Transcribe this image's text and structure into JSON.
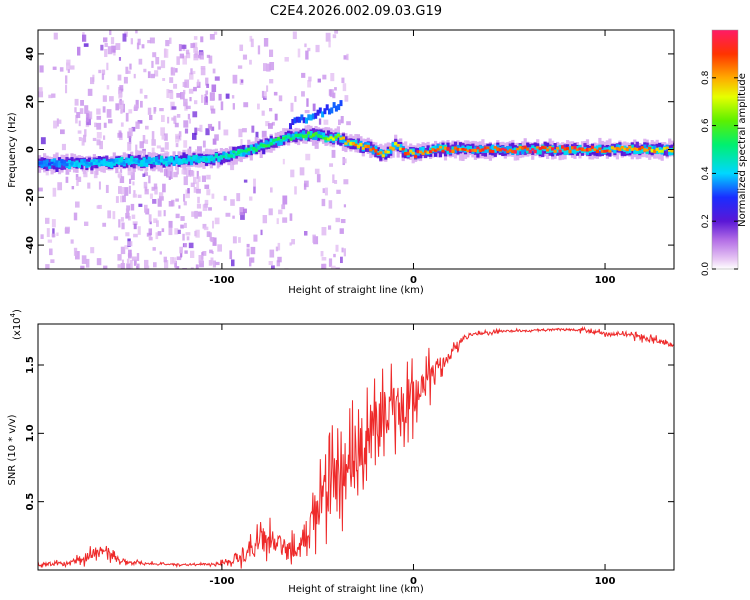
{
  "title": "C2E4.2026.002.09.03.G19",
  "chart_data": [
    {
      "type": "heatmap",
      "title": "C2E4.2026.002.09.03.G19",
      "xlabel": "Height of straight line (km)",
      "ylabel": "Frequency (Hz)",
      "xlim": [
        -196,
        136
      ],
      "ylim": [
        -50,
        50
      ],
      "xticks": [
        -100,
        0,
        100
      ],
      "yticks": [
        -40,
        -20,
        0,
        20,
        40
      ],
      "colorbar": {
        "label": "Normalized spectral amplitude",
        "range": [
          0.0,
          1.0
        ],
        "ticks": [
          0.0,
          0.2,
          0.4,
          0.6,
          0.8
        ],
        "tick_labels": [
          "0.0",
          "0.2",
          "0.4",
          "0.6",
          "0.8"
        ]
      },
      "ridge": {
        "x": [
          -196,
          -170,
          -150,
          -130,
          -110,
          -100,
          -90,
          -80,
          -70,
          -60,
          -50,
          -45,
          -40,
          -35,
          -30,
          -25,
          -20,
          -15,
          -10,
          -5,
          0,
          5,
          10,
          20,
          40,
          60,
          80,
          100,
          120,
          136
        ],
        "y": [
          -6,
          -6,
          -5,
          -5,
          -4,
          -3,
          -1,
          1,
          4,
          6,
          6,
          5,
          5,
          3,
          2,
          1,
          -1,
          -2,
          2,
          -1,
          -2,
          -1,
          0,
          0,
          0,
          0,
          0,
          0,
          0,
          0
        ],
        "amplitude": [
          0.35,
          0.4,
          0.4,
          0.42,
          0.45,
          0.5,
          0.55,
          0.55,
          0.55,
          0.55,
          0.6,
          0.65,
          0.75,
          0.8,
          0.82,
          0.85,
          0.85,
          0.8,
          0.85,
          0.9,
          0.9,
          0.88,
          0.88,
          0.92,
          0.95,
          0.95,
          0.95,
          0.92,
          0.85,
          0.75
        ]
      }
    },
    {
      "type": "line",
      "xlabel": "Height of straight line (km)",
      "ylabel": "SNR (10 * v/v)",
      "scale_label": "(x10",
      "scale_exponent": "4",
      "xlim": [
        -196,
        136
      ],
      "ylim": [
        0,
        1.8
      ],
      "xticks": [
        -100,
        0,
        100
      ],
      "yticks": [
        0.5,
        1.0,
        1.5
      ],
      "ytick_labels": [
        "0.5",
        "1.0",
        "1.5"
      ],
      "series": [
        {
          "name": "SNR",
          "color": "#ee2a2a",
          "x": [
            -196,
            -180,
            -170,
            -165,
            -150,
            -130,
            -110,
            -100,
            -90,
            -85,
            -80,
            -75,
            -70,
            -65,
            -60,
            -55,
            -50,
            -45,
            -40,
            -35,
            -30,
            -25,
            -20,
            -15,
            -10,
            -5,
            0,
            5,
            10,
            15,
            20,
            25,
            30,
            40,
            50,
            60,
            70,
            80,
            90,
            100,
            110,
            120,
            130,
            136
          ],
          "y": [
            0.04,
            0.05,
            0.09,
            0.15,
            0.06,
            0.04,
            0.04,
            0.05,
            0.08,
            0.14,
            0.2,
            0.22,
            0.18,
            0.15,
            0.16,
            0.3,
            0.45,
            0.55,
            0.65,
            0.75,
            0.85,
            0.95,
            1.05,
            1.1,
            1.2,
            1.2,
            1.25,
            1.35,
            1.45,
            1.5,
            1.6,
            1.68,
            1.72,
            1.74,
            1.75,
            1.75,
            1.76,
            1.76,
            1.75,
            1.73,
            1.72,
            1.7,
            1.67,
            1.64
          ],
          "noise": [
            0.02,
            0.02,
            0.05,
            0.06,
            0.02,
            0.01,
            0.01,
            0.02,
            0.05,
            0.1,
            0.14,
            0.14,
            0.12,
            0.1,
            0.1,
            0.2,
            0.28,
            0.32,
            0.35,
            0.38,
            0.38,
            0.36,
            0.34,
            0.3,
            0.26,
            0.26,
            0.22,
            0.2,
            0.15,
            0.1,
            0.06,
            0.03,
            0.02,
            0.015,
            0.01,
            0.01,
            0.01,
            0.01,
            0.02,
            0.02,
            0.02,
            0.03,
            0.03,
            0.02
          ]
        }
      ]
    }
  ]
}
